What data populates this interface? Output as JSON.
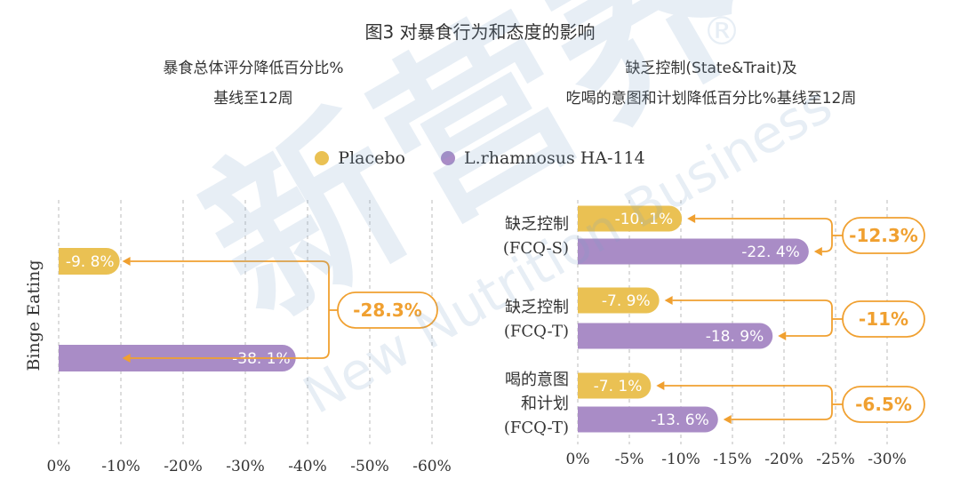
{
  "title": "图3 对暴食行为和态度的影响",
  "legend": [
    {
      "name": "Placebo",
      "color": "#EAC153"
    },
    {
      "name": "L.rhamnosus HA-114",
      "color": "#A98CC6"
    }
  ],
  "watermark": {
    "main": "新营养",
    "sub": "New Nutrition Business",
    "reg": "®"
  },
  "chart_data": [
    {
      "type": "bar",
      "orientation": "horizontal",
      "title_lines": [
        "暴食总体评分降低百分比%",
        "基线至12周"
      ],
      "ylabel": "Binge Eating",
      "xlim": [
        0,
        -60
      ],
      "xticks": [
        "0%",
        "-10%",
        "-20%",
        "-30%",
        "-40%",
        "-50%",
        "-60%"
      ],
      "grid": true,
      "categories": [
        ""
      ],
      "series": [
        {
          "name": "Placebo",
          "values": [
            -9.8
          ],
          "labels": [
            "-9. 8%"
          ]
        },
        {
          "name": "L.rhamnosus HA-114",
          "values": [
            -38.1
          ],
          "labels": [
            "-38. 1%"
          ]
        }
      ],
      "differences": [
        "-28.3%"
      ]
    },
    {
      "type": "bar",
      "orientation": "horizontal",
      "title_lines": [
        "缺乏控制(State&Trait)及",
        "吃喝的意图和计划降低百分比%基线至12周"
      ],
      "xlim": [
        0,
        -30
      ],
      "xticks": [
        "0%",
        "-5%",
        "-10%",
        "-15%",
        "-20%",
        "-25%",
        "-30%"
      ],
      "grid": true,
      "categories": [
        [
          "缺乏控制",
          "(FCQ-S)"
        ],
        [
          "缺乏控制",
          "(FCQ-T)"
        ],
        [
          "喝的意图",
          "和计划",
          "(FCQ-T)"
        ]
      ],
      "series": [
        {
          "name": "Placebo",
          "values": [
            -10.1,
            -7.9,
            -7.1
          ],
          "labels": [
            "-10. 1%",
            "-7. 9%",
            "-7. 1%"
          ]
        },
        {
          "name": "L.rhamnosus HA-114",
          "values": [
            -22.4,
            -18.9,
            -13.6
          ],
          "labels": [
            "-22. 4%",
            "-18. 9%",
            "-13. 6%"
          ]
        }
      ],
      "differences": [
        "-12.3%",
        "-11%",
        "-6.5%"
      ]
    }
  ]
}
